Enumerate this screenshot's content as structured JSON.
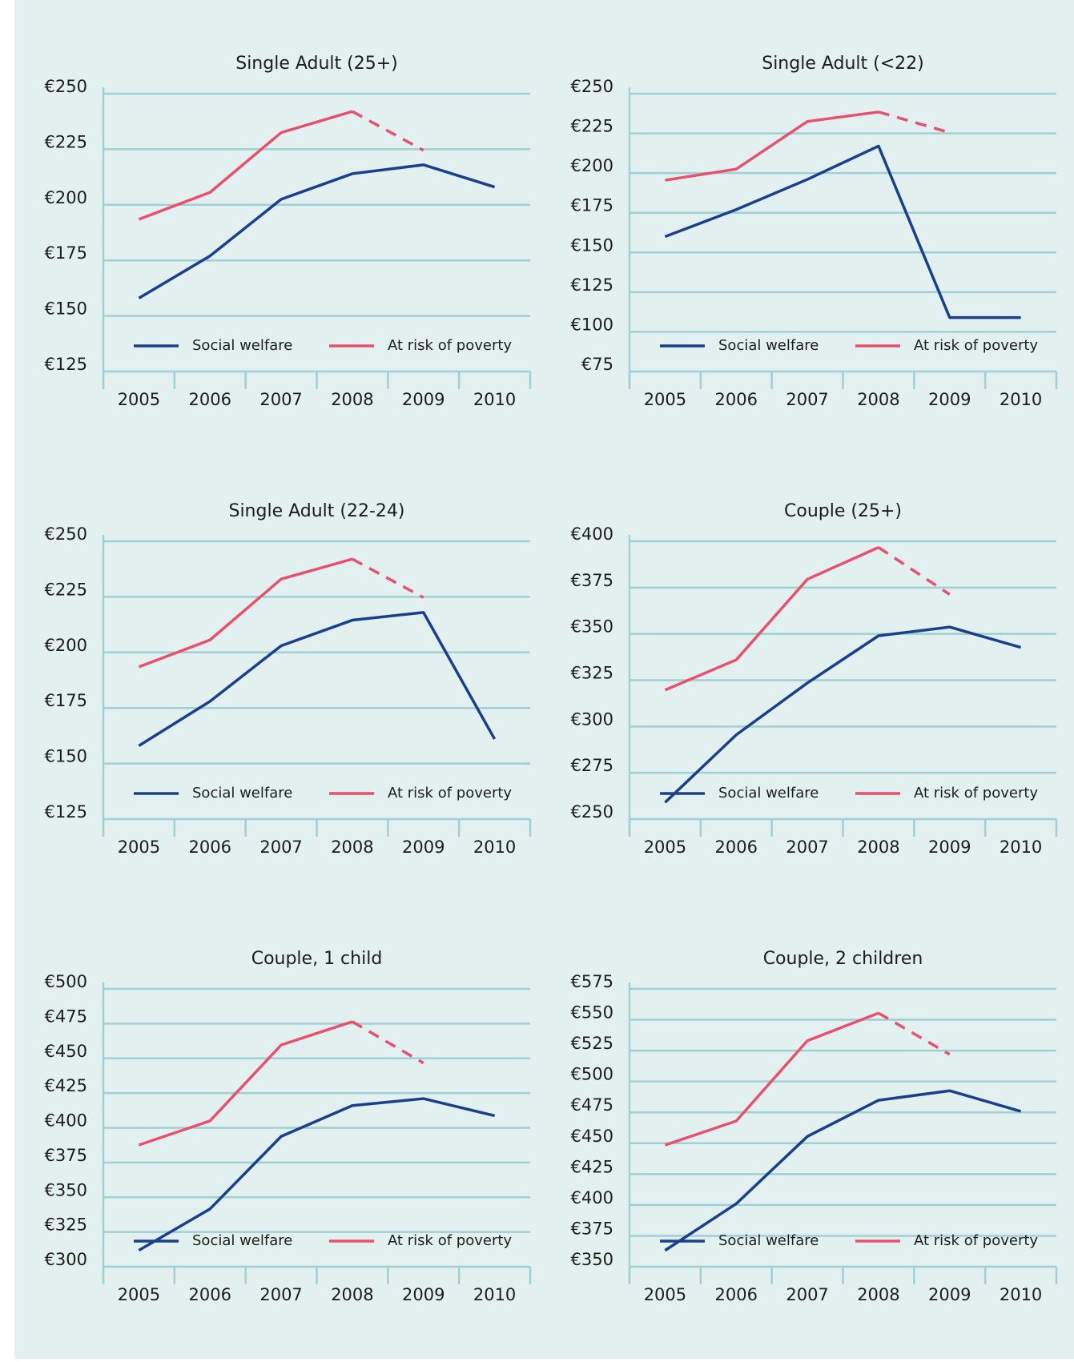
{
  "chart_data": [
    {
      "type": "line",
      "title": "Single Adult (25+)",
      "categories": [
        "2005",
        "2006",
        "2007",
        "2008",
        "2009",
        "2010"
      ],
      "series": [
        {
          "name": "Social welfare",
          "color": "#1b3f8b",
          "values": [
            158,
            177,
            202.5,
            214,
            218,
            208
          ]
        },
        {
          "name": "At risk of poverty",
          "color": "#e8506e",
          "values": [
            193.5,
            205.6,
            232.5,
            242,
            224.5,
            null
          ],
          "dashed_after": "2008"
        }
      ],
      "ylim": [
        125,
        250
      ],
      "yticks": [
        {
          "value": 125,
          "label": "€125"
        },
        {
          "value": 150,
          "label": "€150"
        },
        {
          "value": 175,
          "label": "€175"
        },
        {
          "value": 200,
          "label": "€200"
        },
        {
          "value": 225,
          "label": "€225"
        },
        {
          "value": 250,
          "label": "€250"
        }
      ],
      "grid": true,
      "legend": "bottom"
    },
    {
      "type": "line",
      "title": "Single Adult (<22)",
      "categories": [
        "2005",
        "2006",
        "2007",
        "2008",
        "2009",
        "2010"
      ],
      "series": [
        {
          "name": "Social welfare",
          "color": "#1b3f8b",
          "values": [
            160,
            177,
            196,
            217,
            109,
            109
          ]
        },
        {
          "name": "At risk of poverty",
          "color": "#e8506e",
          "values": [
            195.5,
            202.5,
            232.5,
            238.5,
            225.5,
            null
          ],
          "dashed_after": "2008"
        }
      ],
      "ylim": [
        75,
        250
      ],
      "yticks": [
        {
          "value": 75,
          "label": "€75"
        },
        {
          "value": 100,
          "label": "€100"
        },
        {
          "value": 125,
          "label": "€125"
        },
        {
          "value": 150,
          "label": "€150"
        },
        {
          "value": 175,
          "label": "€175"
        },
        {
          "value": 200,
          "label": "€200"
        },
        {
          "value": 225,
          "label": "€225"
        },
        {
          "value": 250,
          "label": "€250"
        }
      ],
      "grid": true,
      "legend": "bottom"
    },
    {
      "type": "line",
      "title": "Single Adult (22-24)",
      "categories": [
        "2005",
        "2006",
        "2007",
        "2008",
        "2009",
        "2010"
      ],
      "series": [
        {
          "name": "Social welfare",
          "color": "#1b3f8b",
          "values": [
            158,
            178,
            203,
            214.5,
            218,
            161
          ]
        },
        {
          "name": "At risk of poverty",
          "color": "#e8506e",
          "values": [
            193.5,
            205.6,
            233,
            242,
            224.7,
            null
          ],
          "dashed_after": "2008"
        }
      ],
      "ylim": [
        125,
        250
      ],
      "yticks": [
        {
          "value": 125,
          "label": "€125"
        },
        {
          "value": 150,
          "label": "€150"
        },
        {
          "value": 175,
          "label": "€175"
        },
        {
          "value": 200,
          "label": "€200"
        },
        {
          "value": 225,
          "label": "€225"
        },
        {
          "value": 250,
          "label": "€250"
        }
      ],
      "grid": true,
      "legend": "bottom"
    },
    {
      "type": "line",
      "title": "Couple (25+)",
      "categories": [
        "2005",
        "2006",
        "2007",
        "2008",
        "2009",
        "2010"
      ],
      "series": [
        {
          "name": "Social welfare",
          "color": "#1b3f8b",
          "values": [
            259,
            295.5,
            323.5,
            349,
            353.7,
            342.7
          ]
        },
        {
          "name": "At risk of poverty",
          "color": "#e8506e",
          "values": [
            319.7,
            336,
            379.5,
            396.7,
            371.3,
            null
          ],
          "dashed_after": "2008"
        }
      ],
      "ylim": [
        250,
        400
      ],
      "yticks": [
        {
          "value": 250,
          "label": "€250"
        },
        {
          "value": 275,
          "label": "€275"
        },
        {
          "value": 300,
          "label": "€300"
        },
        {
          "value": 325,
          "label": "€325"
        },
        {
          "value": 350,
          "label": "€350"
        },
        {
          "value": 375,
          "label": "€375"
        },
        {
          "value": 400,
          "label": "€400"
        }
      ],
      "grid": true,
      "legend": "bottom"
    },
    {
      "type": "line",
      "title": "Couple, 1 child",
      "categories": [
        "2005",
        "2006",
        "2007",
        "2008",
        "2009",
        "2010"
      ],
      "series": [
        {
          "name": "Social welfare",
          "color": "#1b3f8b",
          "values": [
            311.8,
            341.6,
            393.8,
            416,
            421,
            408.7
          ]
        },
        {
          "name": "At risk of poverty",
          "color": "#e8506e",
          "values": [
            387.6,
            405,
            459.6,
            476.4,
            446.6,
            null
          ],
          "dashed_after": "2008"
        }
      ],
      "ylim": [
        300,
        500
      ],
      "yticks": [
        {
          "value": 300,
          "label": "€300"
        },
        {
          "value": 325,
          "label": "€325"
        },
        {
          "value": 350,
          "label": "€350"
        },
        {
          "value": 375,
          "label": "€375"
        },
        {
          "value": 400,
          "label": "€400"
        },
        {
          "value": 425,
          "label": "€425"
        },
        {
          "value": 450,
          "label": "€450"
        },
        {
          "value": 475,
          "label": "€475"
        },
        {
          "value": 500,
          "label": "€500"
        }
      ],
      "grid": true,
      "legend": "bottom"
    },
    {
      "type": "line",
      "title": "Couple, 2 children",
      "categories": [
        "2005",
        "2006",
        "2007",
        "2008",
        "2009",
        "2010"
      ],
      "series": [
        {
          "name": "Social welfare",
          "color": "#1b3f8b",
          "values": [
            363.2,
            401,
            455.5,
            484.8,
            492.5,
            475.8
          ]
        },
        {
          "name": "At risk of poverty",
          "color": "#e8506e",
          "values": [
            448.5,
            468,
            533,
            555.4,
            521.9,
            null
          ],
          "dashed_after": "2008"
        }
      ],
      "ylim": [
        350,
        575
      ],
      "yticks": [
        {
          "value": 350,
          "label": "€350"
        },
        {
          "value": 375,
          "label": "€375"
        },
        {
          "value": 400,
          "label": "€400"
        },
        {
          "value": 425,
          "label": "€425"
        },
        {
          "value": 450,
          "label": "€450"
        },
        {
          "value": 475,
          "label": "€475"
        },
        {
          "value": 500,
          "label": "€500"
        },
        {
          "value": 525,
          "label": "€525"
        },
        {
          "value": 550,
          "label": "€550"
        },
        {
          "value": 575,
          "label": "€575"
        }
      ],
      "grid": true,
      "legend": "bottom"
    }
  ]
}
